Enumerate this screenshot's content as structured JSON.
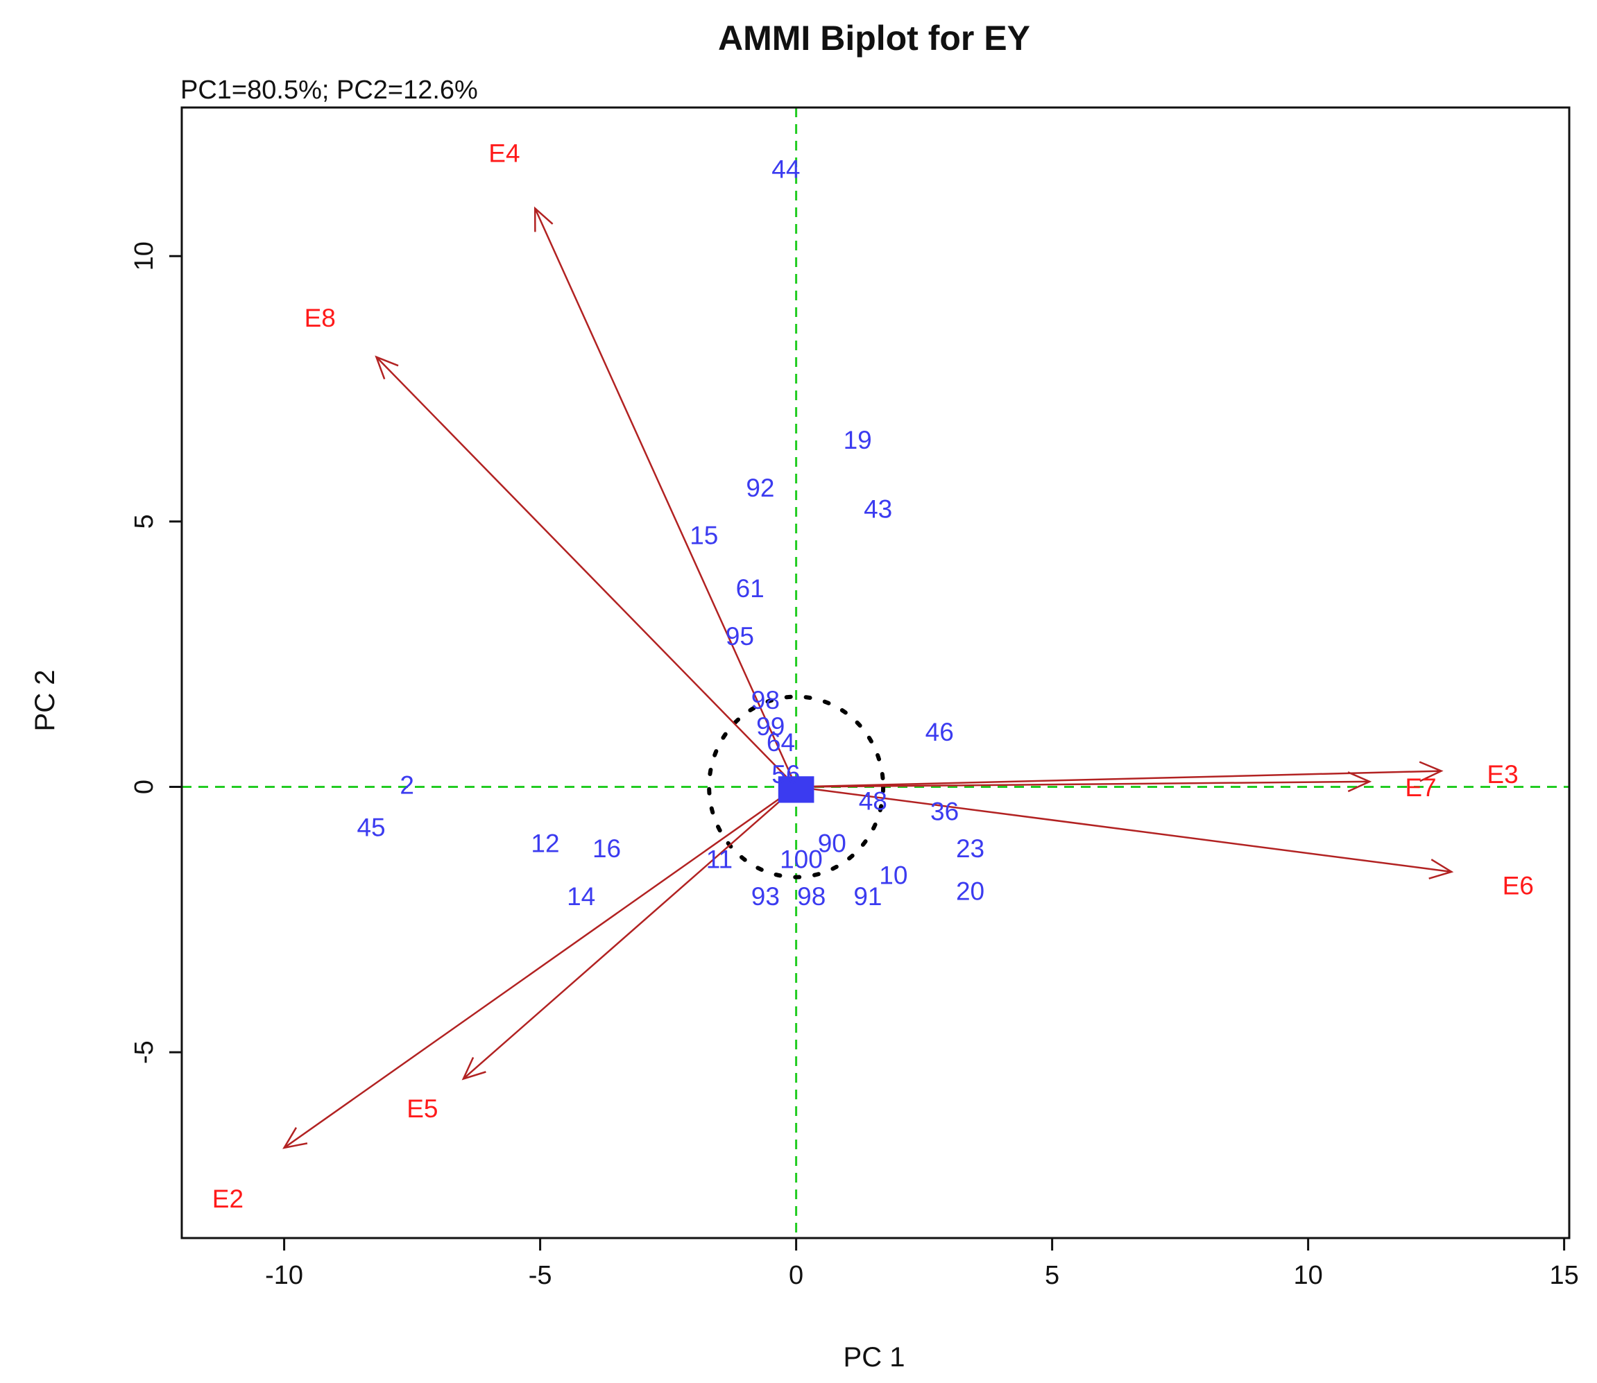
{
  "chart_data": {
    "type": "scatter",
    "title": "AMMI Biplot for EY",
    "subtitle": "PC1=80.5%; PC2=12.6%",
    "xlabel": "PC 1",
    "ylabel": "PC 2",
    "xlim": [
      -12,
      15.1
    ],
    "ylim": [
      -8.5,
      12.8
    ],
    "xticks": [
      -10,
      -5,
      0,
      5,
      10,
      15
    ],
    "yticks": [
      -5,
      0,
      5,
      10
    ],
    "reference_lines": {
      "x": 0,
      "y": 0,
      "color": "#22cc22"
    },
    "stability_circle": {
      "center": [
        0,
        0
      ],
      "radius": 1.7
    },
    "environments": [
      {
        "label": "E3",
        "x": 12.6,
        "y": 0.3,
        "label_x": 13.8,
        "label_y": 0.2
      },
      {
        "label": "E7",
        "x": 11.2,
        "y": 0.1,
        "label_x": 12.2,
        "label_y": -0.05
      },
      {
        "label": "E6",
        "x": 12.8,
        "y": -1.6,
        "label_x": 14.1,
        "label_y": -1.9
      },
      {
        "label": "E4",
        "x": -5.1,
        "y": 10.9,
        "label_x": -5.7,
        "label_y": 11.9
      },
      {
        "label": "E8",
        "x": -8.2,
        "y": 8.1,
        "label_x": -9.3,
        "label_y": 8.8
      },
      {
        "label": "E5",
        "x": -6.5,
        "y": -5.5,
        "label_x": -7.3,
        "label_y": -6.1
      },
      {
        "label": "E2",
        "x": -10.0,
        "y": -6.8,
        "label_x": -11.1,
        "label_y": -7.8
      }
    ],
    "genotypes": [
      {
        "label": "44",
        "x": -0.2,
        "y": 11.6
      },
      {
        "label": "19",
        "x": 1.2,
        "y": 6.5
      },
      {
        "label": "92",
        "x": -0.7,
        "y": 5.6
      },
      {
        "label": "43",
        "x": 1.6,
        "y": 5.2
      },
      {
        "label": "15",
        "x": -1.8,
        "y": 4.7
      },
      {
        "label": "61",
        "x": -0.9,
        "y": 3.7
      },
      {
        "label": "95",
        "x": -1.1,
        "y": 2.8
      },
      {
        "label": "98",
        "x": -0.6,
        "y": 1.6
      },
      {
        "label": "99",
        "x": -0.5,
        "y": 1.1
      },
      {
        "label": "64",
        "x": -0.3,
        "y": 0.8
      },
      {
        "label": "46",
        "x": 2.8,
        "y": 1.0
      },
      {
        "label": "56",
        "x": -0.2,
        "y": 0.2
      },
      {
        "label": "2",
        "x": -7.6,
        "y": 0.0
      },
      {
        "label": "45",
        "x": -8.3,
        "y": -0.8
      },
      {
        "label": "48",
        "x": 1.5,
        "y": -0.3
      },
      {
        "label": "36",
        "x": 2.9,
        "y": -0.5
      },
      {
        "label": "12",
        "x": -4.9,
        "y": -1.1
      },
      {
        "label": "16",
        "x": -3.7,
        "y": -1.2
      },
      {
        "label": "23",
        "x": 3.4,
        "y": -1.2
      },
      {
        "label": "90",
        "x": 0.7,
        "y": -1.1
      },
      {
        "label": "11",
        "x": -1.5,
        "y": -1.4
      },
      {
        "label": "100",
        "x": 0.1,
        "y": -1.4
      },
      {
        "label": "10",
        "x": 1.9,
        "y": -1.7
      },
      {
        "label": "20",
        "x": 3.4,
        "y": -2.0
      },
      {
        "label": "14",
        "x": -4.2,
        "y": -2.1
      },
      {
        "label": "93",
        "x": -0.6,
        "y": -2.1
      },
      {
        "label": "98",
        "x": 0.3,
        "y": -2.1
      },
      {
        "label": "91",
        "x": 1.4,
        "y": -2.1
      }
    ],
    "colors": {
      "genotype": "#3b3bf0",
      "environment": "#ff1a1a",
      "vector": "#b22222",
      "reference": "#22cc22",
      "circle": "#000000"
    }
  }
}
